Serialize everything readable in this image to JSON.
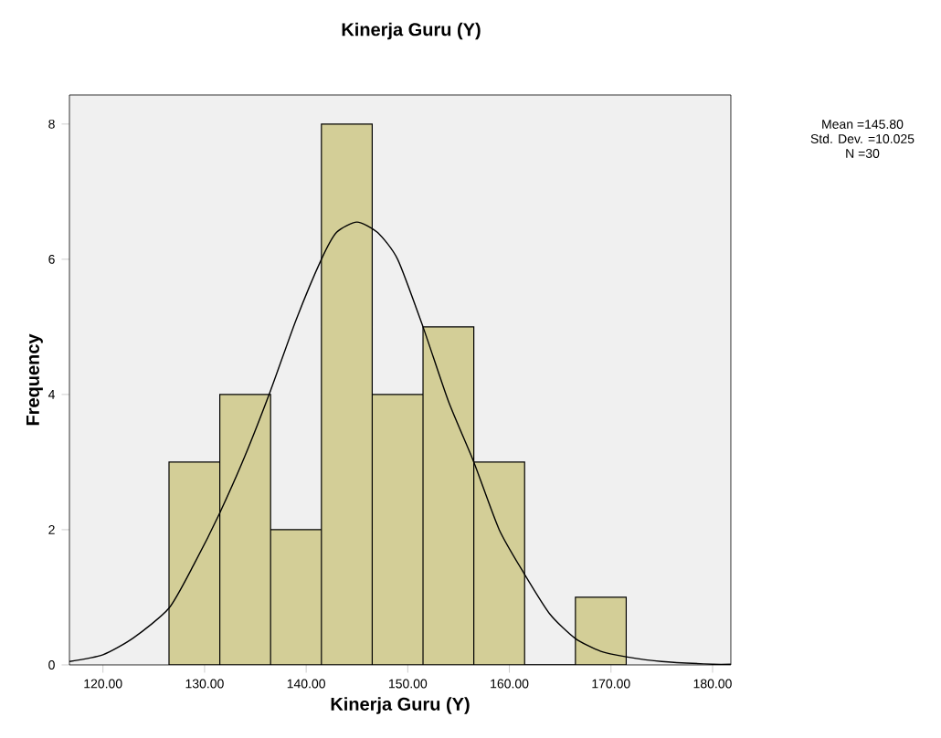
{
  "chart_data": {
    "type": "histogram",
    "title": "Kinerja Guru (Y)",
    "xlabel": "Kinerja Guru (Y)",
    "ylabel": "Frequency",
    "bins": [
      126.5,
      131.5,
      136.5,
      141.5,
      146.5,
      151.5,
      156.5,
      161.5,
      166.5,
      171.5
    ],
    "values": [
      3,
      4,
      2,
      8,
      4,
      5,
      3,
      0,
      1
    ],
    "color": "#d3ce97",
    "series": [
      {
        "type": "line",
        "color": "#000000",
        "x": [
          116.7,
          120,
          123,
          126.5,
          129,
          131.5,
          134,
          136.5,
          139,
          141.5,
          143,
          145,
          147,
          149,
          151.5,
          154,
          156.5,
          159,
          161.5,
          164,
          166.5,
          169,
          171.5,
          175,
          180,
          181.8
        ],
        "values": [
          0.05,
          0.15,
          0.4,
          0.84,
          1.5,
          2.25,
          3.1,
          4.06,
          5.1,
          6.0,
          6.4,
          6.55,
          6.4,
          6.0,
          5.0,
          3.9,
          3.0,
          2.0,
          1.34,
          0.75,
          0.39,
          0.2,
          0.12,
          0.05,
          0.01,
          0.01
        ]
      }
    ],
    "xlim": [
      116.7,
      181.8
    ],
    "ylim": [
      0,
      8.43
    ],
    "xticks": [
      {
        "value": 120,
        "label": "120.00"
      },
      {
        "value": 130,
        "label": "130.00"
      },
      {
        "value": 140,
        "label": "140.00"
      },
      {
        "value": 150,
        "label": "150.00"
      },
      {
        "value": 160,
        "label": "160.00"
      },
      {
        "value": 170,
        "label": "170.00"
      },
      {
        "value": 180,
        "label": "180.00"
      }
    ],
    "yticks": [
      0,
      2,
      4,
      6,
      8
    ],
    "annotations": [
      "Mean =145.80",
      "Std. Dev. =10.025",
      "N =30"
    ]
  }
}
